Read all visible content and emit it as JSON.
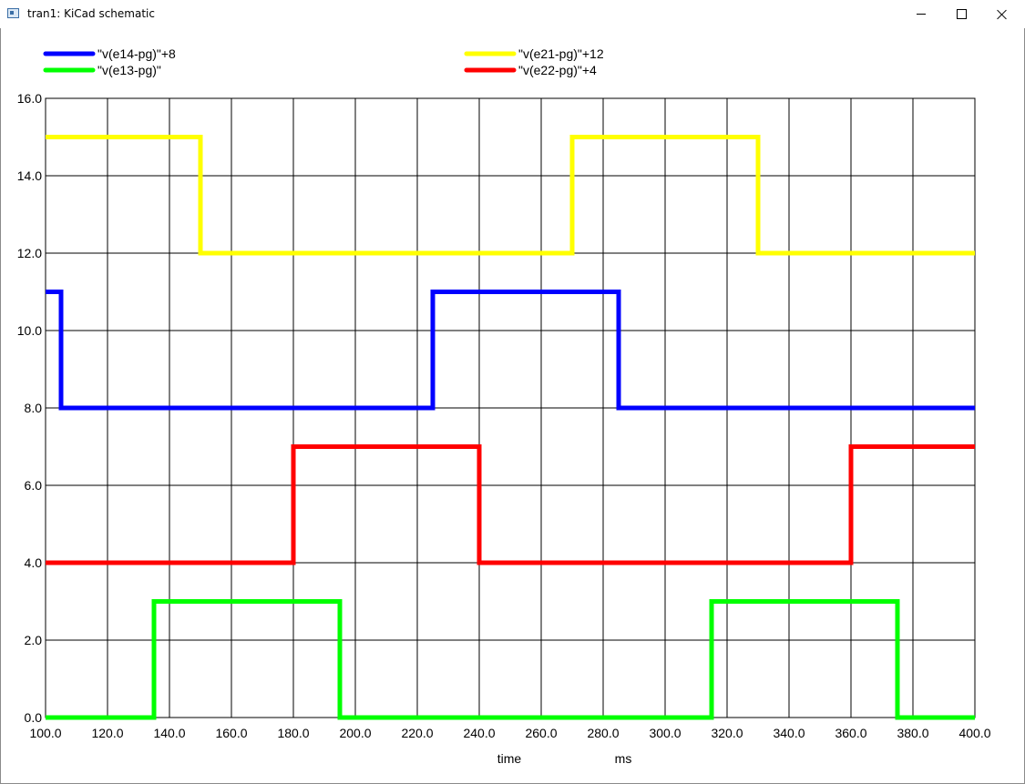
{
  "window": {
    "title": "tran1: KiCad schematic",
    "buttons": {
      "minimize_icon": "minimize-icon",
      "maximize_icon": "maximize-icon",
      "close_icon": "close-icon"
    }
  },
  "chart_data": {
    "type": "line",
    "xlabel": "time",
    "xunit": "ms",
    "ylabel": "",
    "xlim": [
      100,
      400
    ],
    "ylim": [
      0,
      16
    ],
    "x_ticks": [
      "100.0",
      "120.0",
      "140.0",
      "160.0",
      "180.0",
      "200.0",
      "220.0",
      "240.0",
      "260.0",
      "280.0",
      "300.0",
      "320.0",
      "340.0",
      "360.0",
      "380.0",
      "400.0"
    ],
    "y_ticks": [
      "0.0",
      "2.0",
      "4.0",
      "6.0",
      "8.0",
      "10.0",
      "12.0",
      "14.0",
      "16.0"
    ],
    "grid": true,
    "legend_position": "top",
    "series": [
      {
        "name": "\"v(e14-pg)\"+8",
        "color": "#0000ff",
        "points": [
          [
            100,
            11
          ],
          [
            105,
            11
          ],
          [
            105,
            8
          ],
          [
            225,
            8
          ],
          [
            225,
            11
          ],
          [
            285,
            11
          ],
          [
            285,
            8
          ],
          [
            400,
            8
          ]
        ]
      },
      {
        "name": "\"v(e21-pg)\"+12",
        "color": "#ffff00",
        "points": [
          [
            100,
            15
          ],
          [
            150,
            15
          ],
          [
            150,
            12
          ],
          [
            270,
            12
          ],
          [
            270,
            15
          ],
          [
            330,
            15
          ],
          [
            330,
            12
          ],
          [
            400,
            12
          ]
        ]
      },
      {
        "name": "\"v(e13-pg)\"",
        "color": "#00ff00",
        "points": [
          [
            100,
            0
          ],
          [
            135,
            0
          ],
          [
            135,
            3
          ],
          [
            195,
            3
          ],
          [
            195,
            0
          ],
          [
            315,
            0
          ],
          [
            315,
            3
          ],
          [
            375,
            3
          ],
          [
            375,
            0
          ],
          [
            400,
            0
          ]
        ]
      },
      {
        "name": "\"v(e22-pg)\"+4",
        "color": "#ff0000",
        "points": [
          [
            100,
            4
          ],
          [
            180,
            4
          ],
          [
            180,
            7
          ],
          [
            240,
            7
          ],
          [
            240,
            4
          ],
          [
            360,
            4
          ],
          [
            360,
            7
          ],
          [
            400,
            7
          ]
        ]
      }
    ]
  }
}
